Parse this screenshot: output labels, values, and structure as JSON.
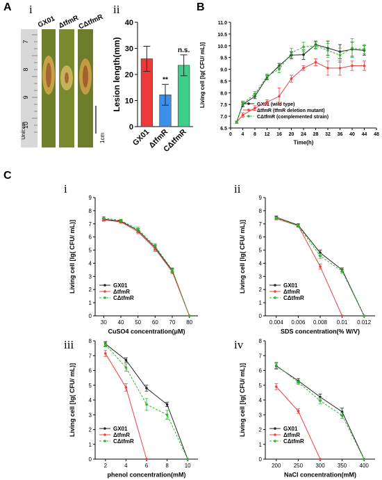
{
  "panels": {
    "A": "A",
    "B": "B",
    "C": "C",
    "A_i": "i",
    "A_ii": "ii",
    "C_i": "i",
    "C_ii": "ii",
    "C_iii": "iii",
    "C_iv": "iv"
  },
  "photo": {
    "strain_labels": [
      "GX01",
      "ΔtfmR",
      "CΔtfmR"
    ],
    "ruler_label": "Unit:cm",
    "ruler_numbers": [
      "7",
      "8",
      "9",
      "10"
    ],
    "scale_label": "1cm",
    "colors": {
      "leaf": "#6f7f2a",
      "lesion": "#c7a04a",
      "ruler": "#d8d8d8"
    }
  },
  "chart_data": [
    {
      "id": "A-ii",
      "type": "bar",
      "categories": [
        "GX01",
        "ΔtfmR",
        "CΔtfmR"
      ],
      "values": [
        26.0,
        12.2,
        23.5
      ],
      "errors": [
        4.8,
        4.0,
        4.0
      ],
      "annotations": [
        "",
        "**",
        "n.s."
      ],
      "colors": [
        "#ec3a3a",
        "#3b8fe8",
        "#3dcf8a"
      ],
      "ylabel": "Lesion length(mm)",
      "ylim": [
        0,
        40
      ],
      "yticks": [
        0,
        10,
        20,
        30,
        40
      ]
    },
    {
      "id": "B",
      "type": "line",
      "xlabel": "Time(h)",
      "ylabel": "Living cell [lg( CFU/ mL)]",
      "xlim": [
        0,
        48
      ],
      "ylim": [
        6.5,
        11
      ],
      "xticks": [
        0,
        4,
        8,
        12,
        16,
        20,
        24,
        28,
        32,
        36,
        40,
        44,
        48
      ],
      "yticks": [
        6.5,
        7.0,
        7.5,
        8.0,
        8.5,
        9.0,
        9.5,
        10.0,
        10.5,
        11.0
      ],
      "x": [
        2,
        4,
        8,
        12,
        16,
        20,
        24,
        28,
        32,
        36,
        40,
        44
      ],
      "series": [
        {
          "name": "GX01 (wild type)",
          "color": "#222222",
          "dash": false,
          "values": [
            6.75,
            7.5,
            7.85,
            8.65,
            9.15,
            9.6,
            9.62,
            10.05,
            9.9,
            9.75,
            9.85,
            9.8
          ],
          "errors": [
            0.05,
            0.1,
            0.1,
            0.1,
            0.1,
            0.15,
            0.2,
            0.15,
            0.3,
            0.3,
            0.3,
            0.2
          ]
        },
        {
          "name": "ΔtfmR (tfmR deletion mutant)",
          "color": "#ef4040",
          "dash": false,
          "values": [
            6.75,
            7.05,
            7.35,
            7.6,
            7.85,
            8.6,
            9.05,
            9.3,
            9.05,
            9.05,
            9.15,
            9.15
          ],
          "errors": [
            0.05,
            0.1,
            0.1,
            0.1,
            0.35,
            0.15,
            0.1,
            0.15,
            0.3,
            0.3,
            0.2,
            0.2
          ]
        },
        {
          "name": "CΔtfmR (complemented strain)",
          "color": "#2fb42f",
          "dash": true,
          "values": [
            6.75,
            7.55,
            7.95,
            8.7,
            9.0,
            9.7,
            9.95,
            10.0,
            9.8,
            9.6,
            9.9,
            9.85
          ],
          "errors": [
            0.05,
            0.1,
            0.1,
            0.1,
            0.15,
            0.2,
            0.2,
            0.15,
            0.3,
            0.3,
            0.4,
            0.2
          ]
        }
      ]
    },
    {
      "id": "C-i",
      "type": "line",
      "xlabel": "CuSO4 concentration(μM)",
      "ylabel": "Living cell [lg( CFU/ mL)]",
      "xlim": [
        25,
        85
      ],
      "ylim": [
        0,
        9
      ],
      "xticks": [
        30,
        40,
        50,
        60,
        70,
        80
      ],
      "yticks": [
        0,
        1,
        2,
        3,
        4,
        5,
        6,
        7,
        8,
        9
      ],
      "x": [
        30,
        40,
        50,
        60,
        70,
        80
      ],
      "series": [
        {
          "name": "GX01",
          "color": "#222222",
          "dash": false,
          "values": [
            7.35,
            7.2,
            6.5,
            5.2,
            3.45,
            0
          ],
          "errors": [
            0.1,
            0.1,
            0.15,
            0.2,
            0.15,
            0
          ]
        },
        {
          "name": "ΔtfmR",
          "color": "#ef4040",
          "dash": false,
          "values": [
            7.3,
            7.15,
            6.4,
            5.1,
            3.35,
            0
          ],
          "errors": [
            0.1,
            0.1,
            0.15,
            0.2,
            0.15,
            0
          ]
        },
        {
          "name": "CΔtfmR",
          "color": "#2fb42f",
          "dash": true,
          "values": [
            7.45,
            7.25,
            6.6,
            5.3,
            3.5,
            0
          ],
          "errors": [
            0.1,
            0.1,
            0.15,
            0.2,
            0.15,
            0
          ]
        }
      ]
    },
    {
      "id": "C-ii",
      "type": "line",
      "xlabel": "SDS concentration(% W/V)",
      "ylabel": "Living cell [lg( CFU/ mL)]",
      "xlim": [
        0.003,
        0.013
      ],
      "ylim": [
        0,
        9
      ],
      "xticks": [
        0.004,
        0.006,
        0.008,
        0.01,
        0.012
      ],
      "yticks": [
        0,
        1,
        2,
        3,
        4,
        5,
        6,
        7,
        8,
        9
      ],
      "x": [
        0.004,
        0.006,
        0.008,
        0.01,
        0.012
      ],
      "series": [
        {
          "name": "GX01",
          "color": "#222222",
          "dash": false,
          "values": [
            7.5,
            6.9,
            4.8,
            3.5,
            0
          ],
          "errors": [
            0.1,
            0.1,
            0.2,
            0.15,
            0
          ]
        },
        {
          "name": "ΔtfmR",
          "color": "#ef4040",
          "dash": false,
          "values": [
            7.4,
            6.85,
            3.75,
            0,
            null
          ],
          "errors": [
            0.1,
            0.1,
            0.2,
            0,
            0
          ]
        },
        {
          "name": "CΔtfmR",
          "color": "#2fb42f",
          "dash": true,
          "values": [
            7.45,
            6.85,
            4.55,
            3.4,
            0
          ],
          "errors": [
            0.1,
            0.1,
            0.2,
            0.15,
            0
          ]
        }
      ]
    },
    {
      "id": "C-iii",
      "type": "line",
      "xlabel": "phenol concentration(mM)",
      "ylabel": "Living cell [lg( CFU/ mL)]",
      "xlim": [
        1,
        11
      ],
      "ylim": [
        0,
        8
      ],
      "xticks": [
        2,
        4,
        6,
        8,
        10
      ],
      "yticks": [
        0,
        1,
        2,
        3,
        4,
        5,
        6,
        7,
        8
      ],
      "x": [
        2,
        4,
        6,
        8,
        10
      ],
      "series": [
        {
          "name": "GX01",
          "color": "#222222",
          "dash": false,
          "values": [
            7.8,
            6.7,
            4.8,
            3.7,
            0
          ],
          "errors": [
            0.15,
            0.15,
            0.2,
            0.15,
            0
          ]
        },
        {
          "name": "ΔtfmR",
          "color": "#ef4040",
          "dash": false,
          "values": [
            7.15,
            4.85,
            0,
            null,
            null
          ],
          "errors": [
            0.2,
            0.25,
            0,
            0,
            0
          ]
        },
        {
          "name": "CΔtfmR",
          "color": "#2fb42f",
          "dash": true,
          "values": [
            7.75,
            6.2,
            3.7,
            3.0,
            0
          ],
          "errors": [
            0.15,
            0.25,
            0.4,
            0.3,
            0
          ]
        }
      ]
    },
    {
      "id": "C-iv",
      "type": "line",
      "xlabel": "NaCl concentration(mM)",
      "ylabel": "Living cell [lg( CFU/ mL)]",
      "xlim": [
        175,
        425
      ],
      "ylim": [
        0,
        8
      ],
      "xticks": [
        200,
        250,
        300,
        350,
        400
      ],
      "yticks": [
        0,
        1,
        2,
        3,
        4,
        5,
        6,
        7,
        8
      ],
      "x": [
        200,
        250,
        300,
        350,
        400
      ],
      "series": [
        {
          "name": "GX01",
          "color": "#222222",
          "dash": false,
          "values": [
            6.3,
            5.3,
            4.2,
            3.2,
            0
          ],
          "errors": [
            0.2,
            0.15,
            0.2,
            0.25,
            0
          ]
        },
        {
          "name": "ΔtfmR",
          "color": "#ef4040",
          "dash": false,
          "values": [
            4.9,
            3.25,
            0,
            null,
            null
          ],
          "errors": [
            0.2,
            0.15,
            0,
            0,
            0
          ]
        },
        {
          "name": "CΔtfmR",
          "color": "#2fb42f",
          "dash": true,
          "values": [
            6.35,
            5.2,
            3.95,
            2.95,
            0
          ],
          "errors": [
            0.2,
            0.15,
            0.2,
            0.2,
            0
          ]
        }
      ]
    }
  ]
}
